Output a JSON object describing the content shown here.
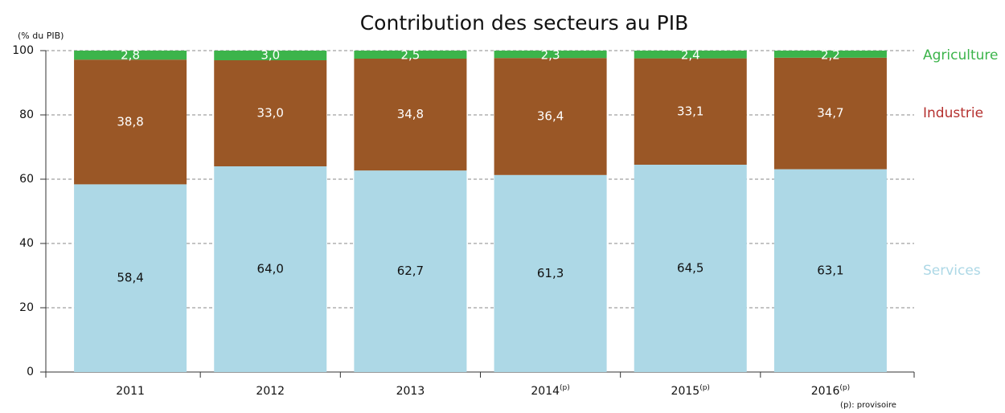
{
  "chart_data": {
    "type": "stacked_bar",
    "title": "Contribution des secteurs au PIB",
    "y_label": "(% du PIB)",
    "categories": [
      "2011",
      "2012",
      "2013",
      "2014",
      "2015",
      "2016"
    ],
    "category_notes": [
      null,
      null,
      null,
      "(p)",
      "(p)",
      "(p)"
    ],
    "footnote": "(p): provisoire",
    "series": [
      {
        "name": "Services",
        "color": "#add8e6",
        "label_color": "#add8e6",
        "text_color": "#111111",
        "values": [
          58.4,
          64.0,
          62.7,
          61.3,
          64.5,
          63.1
        ],
        "value_labels": [
          "58,4",
          "64,0",
          "62,7",
          "61,3",
          "64,5",
          "63,1"
        ]
      },
      {
        "name": "Industrie",
        "color": "#9a5726",
        "label_color": "#b5312f",
        "text_color": "#ffffff",
        "values": [
          38.8,
          33.0,
          34.8,
          36.4,
          33.1,
          34.7
        ],
        "value_labels": [
          "38,8",
          "33,0",
          "34,8",
          "36,4",
          "33,1",
          "34,7"
        ]
      },
      {
        "name": "Agriculture",
        "color": "#3cb44b",
        "label_color": "#3cb44b",
        "text_color": "#ffffff",
        "values": [
          2.8,
          3.0,
          2.5,
          2.3,
          2.4,
          2.2
        ],
        "value_labels": [
          "2,8",
          "3,0",
          "2,5",
          "2,3",
          "2,4",
          "2,2"
        ]
      }
    ],
    "ylim": [
      0,
      100
    ],
    "yticks": [
      0,
      20,
      40,
      60,
      80,
      100
    ],
    "grid": true
  }
}
